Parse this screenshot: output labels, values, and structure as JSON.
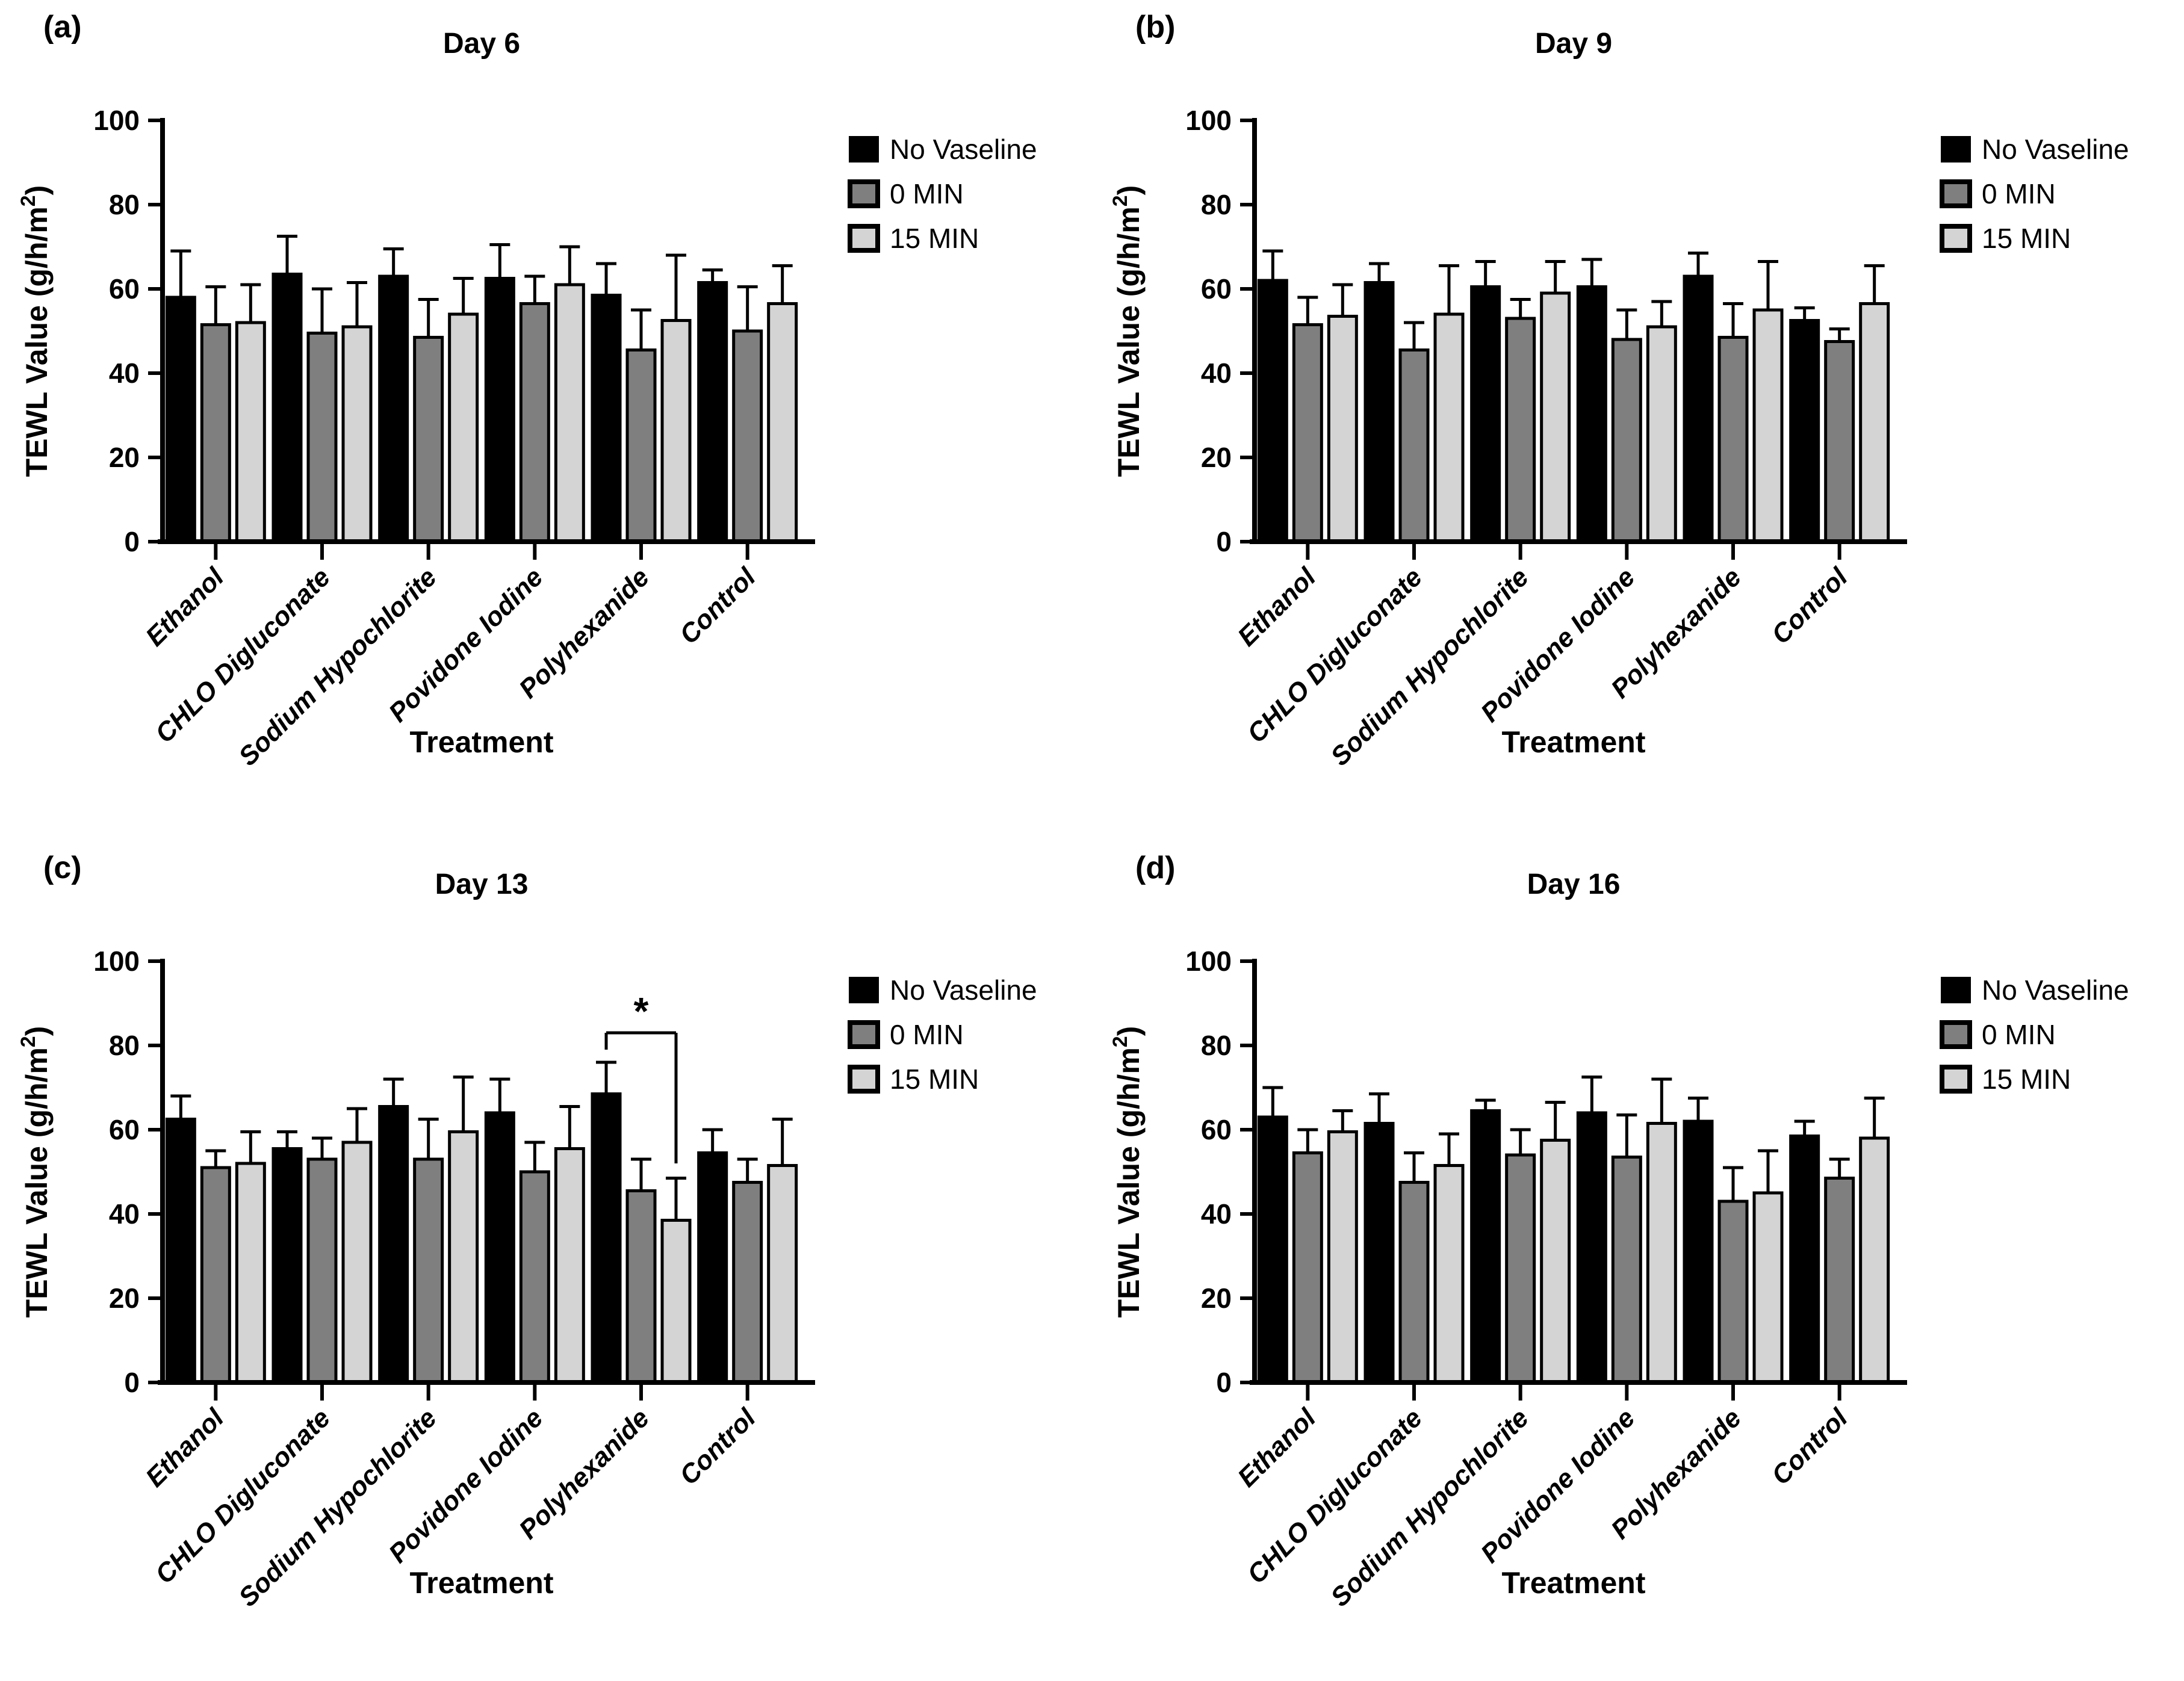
{
  "figure": {
    "background": "#ffffff",
    "xlabel": "Treatment",
    "ylabel": "TEWL Value (g/h/m²)",
    "axis_color": "#000000",
    "bar_border_color": "#000000"
  },
  "legend": {
    "items": [
      {
        "label": "No Vaseline",
        "color": "#000000"
      },
      {
        "label": "0 MIN",
        "color": "#7f7f7f"
      },
      {
        "label": "15 MIN",
        "color": "#d4d4d4"
      }
    ]
  },
  "chart_data": [
    {
      "type": "bar",
      "panel_letter": "(a)",
      "title": "Day 6",
      "xlabel": "Treatment",
      "ylabel": "TEWL Value (g/h/m²)",
      "ylim": [
        0,
        100
      ],
      "yticks": [
        0,
        20,
        40,
        60,
        80,
        100
      ],
      "grid": false,
      "legend_position": "right",
      "categories": [
        "Ethanol",
        "CHLO Digluconate",
        "Sodium Hypochlorite",
        "Povidone Iodine",
        "Polyhexanide",
        "Control"
      ],
      "series": [
        {
          "name": "No Vaseline",
          "color": "#000000",
          "values": [
            58,
            63.5,
            63,
            62.5,
            58.5,
            61.5
          ],
          "errors": [
            11,
            9,
            6.5,
            8,
            7.5,
            3
          ]
        },
        {
          "name": "0 MIN",
          "color": "#7f7f7f",
          "values": [
            51.5,
            49.5,
            48.5,
            56.5,
            45.5,
            50
          ],
          "errors": [
            9,
            10.5,
            9,
            6.5,
            9.5,
            10.5
          ]
        },
        {
          "name": "15 MIN",
          "color": "#d4d4d4",
          "values": [
            52,
            51,
            54,
            61,
            52.5,
            56.5
          ],
          "errors": [
            9,
            10.5,
            8.5,
            9,
            15.5,
            9
          ]
        }
      ]
    },
    {
      "type": "bar",
      "panel_letter": "(b)",
      "title": "Day 9",
      "xlabel": "Treatment",
      "ylabel": "TEWL Value (g/h/m²)",
      "ylim": [
        0,
        100
      ],
      "yticks": [
        0,
        20,
        40,
        60,
        80,
        100
      ],
      "grid": false,
      "legend_position": "right",
      "categories": [
        "Ethanol",
        "CHLO Digluconate",
        "Sodium Hypochlorite",
        "Povidone Iodine",
        "Polyhexanide",
        "Control"
      ],
      "series": [
        {
          "name": "No Vaseline",
          "color": "#000000",
          "values": [
            62,
            61.5,
            60.5,
            60.5,
            63,
            52.5
          ],
          "errors": [
            7,
            4.5,
            6,
            6.5,
            5.5,
            3
          ]
        },
        {
          "name": "0 MIN",
          "color": "#7f7f7f",
          "values": [
            51.5,
            45.5,
            53,
            48,
            48.5,
            47.5
          ],
          "errors": [
            6.5,
            6.5,
            4.5,
            7,
            8,
            3
          ]
        },
        {
          "name": "15 MIN",
          "color": "#d4d4d4",
          "values": [
            53.5,
            54,
            59,
            51,
            55,
            56.5
          ],
          "errors": [
            7.5,
            11.5,
            7.5,
            6,
            11.5,
            9
          ]
        }
      ]
    },
    {
      "type": "bar",
      "panel_letter": "(c)",
      "title": "Day 13",
      "xlabel": "Treatment",
      "ylabel": "TEWL Value (g/h/m²)",
      "ylim": [
        0,
        100
      ],
      "yticks": [
        0,
        20,
        40,
        60,
        80,
        100
      ],
      "grid": false,
      "legend_position": "right",
      "categories": [
        "Ethanol",
        "CHLO Digluconate",
        "Sodium Hypochlorite",
        "Povidone Iodine",
        "Polyhexanide",
        "Control"
      ],
      "series": [
        {
          "name": "No Vaseline",
          "color": "#000000",
          "values": [
            62.5,
            55.5,
            65.5,
            64,
            68.5,
            54.5
          ],
          "errors": [
            5.5,
            4,
            6.5,
            8,
            7.5,
            5.5
          ]
        },
        {
          "name": "0 MIN",
          "color": "#7f7f7f",
          "values": [
            51,
            53,
            53,
            50,
            45.5,
            47.5
          ],
          "errors": [
            4,
            5,
            9.5,
            7,
            7.5,
            5.5
          ]
        },
        {
          "name": "15 MIN",
          "color": "#d4d4d4",
          "values": [
            52,
            57,
            59.5,
            55.5,
            38.5,
            51.5
          ],
          "errors": [
            7.5,
            8,
            13,
            10,
            10,
            11
          ]
        }
      ],
      "significance": {
        "label": "*",
        "category": "Polyhexanide",
        "category_index": 4,
        "from_series_index": 0,
        "to_series_index": 2,
        "bracket_y_value": 83,
        "left_tick_to_value": 79,
        "right_tick_to_value": 52
      }
    },
    {
      "type": "bar",
      "panel_letter": "(d)",
      "title": "Day 16",
      "xlabel": "Treatment",
      "ylabel": "TEWL Value (g/h/m²)",
      "ylim": [
        0,
        100
      ],
      "yticks": [
        0,
        20,
        40,
        60,
        80,
        100
      ],
      "grid": false,
      "legend_position": "right",
      "categories": [
        "Ethanol",
        "CHLO Digluconate",
        "Sodium Hypochlorite",
        "Povidone Iodine",
        "Polyhexanide",
        "Control"
      ],
      "series": [
        {
          "name": "No Vaseline",
          "color": "#000000",
          "values": [
            63,
            61.5,
            64.5,
            64,
            62,
            58.5
          ],
          "errors": [
            7,
            7,
            2.5,
            8.5,
            5.5,
            3.5
          ]
        },
        {
          "name": "0 MIN",
          "color": "#7f7f7f",
          "values": [
            54.5,
            47.5,
            54,
            53.5,
            43,
            48.5
          ],
          "errors": [
            5.5,
            7,
            6,
            10,
            8,
            4.5
          ]
        },
        {
          "name": "15 MIN",
          "color": "#d4d4d4",
          "values": [
            59.5,
            51.5,
            57.5,
            61.5,
            45,
            58
          ],
          "errors": [
            5,
            7.5,
            9,
            10.5,
            10,
            9.5
          ]
        }
      ]
    }
  ]
}
